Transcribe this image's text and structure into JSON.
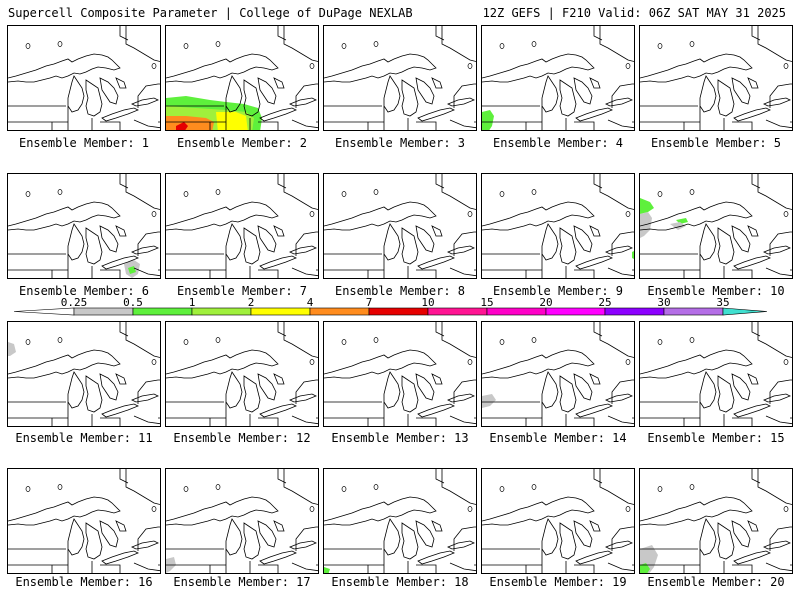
{
  "header": {
    "left_title": "Supercell Composite Parameter | College of DuPage NEXLAB",
    "right_title": "12Z GEFS | F210 Valid: 06Z SAT MAY 31 2025"
  },
  "colorbar": {
    "labels": [
      "0.25",
      "0.5",
      "1",
      "2",
      "4",
      "7",
      "10",
      "15",
      "20",
      "25",
      "30",
      "35"
    ],
    "colors": [
      "#c8c8c8",
      "#5ef03c",
      "#a0f03c",
      "#ffff00",
      "#ff8c1e",
      "#e60000",
      "#ff1493",
      "#ff00c8",
      "#ff00ff",
      "#8c00ff",
      "#b46ee6",
      "#40e0d0"
    ],
    "low_end_color": "#ffffff"
  },
  "members": [
    {
      "label": "Ensemble Member: 1",
      "shading": "none"
    },
    {
      "label": "Ensemble Member: 2",
      "shading": "strong southwest corner: green/yellow/orange/red"
    },
    {
      "label": "Ensemble Member: 3",
      "shading": "none"
    },
    {
      "label": "Ensemble Member: 4",
      "shading": "small green southwest"
    },
    {
      "label": "Ensemble Member: 5",
      "shading": "none"
    },
    {
      "label": "Ensemble Member: 6",
      "shading": "small gray/green south-southeast"
    },
    {
      "label": "Ensemble Member: 7",
      "shading": "none"
    },
    {
      "label": "Ensemble Member: 8",
      "shading": "none"
    },
    {
      "label": "Ensemble Member: 9",
      "shading": "tiny green east edge"
    },
    {
      "label": "Ensemble Member: 10",
      "shading": "green/gray northwest"
    },
    {
      "label": "Ensemble Member: 11",
      "shading": "tiny gray northwest"
    },
    {
      "label": "Ensemble Member: 12",
      "shading": "none"
    },
    {
      "label": "Ensemble Member: 13",
      "shading": "none"
    },
    {
      "label": "Ensemble Member: 14",
      "shading": "tiny gray southwest"
    },
    {
      "label": "Ensemble Member: 15",
      "shading": "none"
    },
    {
      "label": "Ensemble Member: 16",
      "shading": "none"
    },
    {
      "label": "Ensemble Member: 17",
      "shading": "tiny gray southwest"
    },
    {
      "label": "Ensemble Member: 18",
      "shading": "tiny green southwest corner"
    },
    {
      "label": "Ensemble Member: 19",
      "shading": "none"
    },
    {
      "label": "Ensemble Member: 20",
      "shading": "gray/green southwest"
    }
  ]
}
